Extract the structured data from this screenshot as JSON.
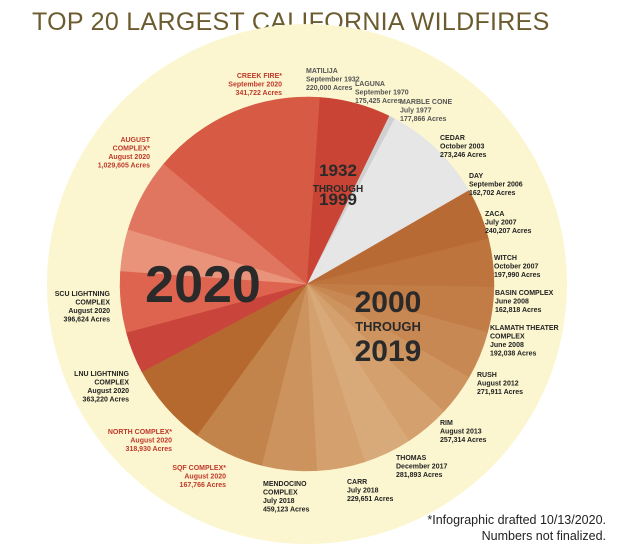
{
  "chart_data": {
    "type": "pie",
    "title": "TOP 20 LARGEST CALIFORNIA WILDFIRES",
    "unit": "Acres",
    "groups": [
      {
        "key": "era1",
        "label_lines": [
          "1932",
          "THROUGH",
          "1999"
        ]
      },
      {
        "key": "era2",
        "label_lines": [
          "2000",
          "THROUGH",
          "2019"
        ]
      },
      {
        "key": "era3",
        "label_lines": [
          "2020"
        ]
      }
    ],
    "slices": [
      {
        "name": [
          "MATILIJA"
        ],
        "date": "September 1932",
        "acres": "220,000 Acres",
        "group": "era1",
        "color": "#bcbcbc",
        "label_color": "#555555"
      },
      {
        "name": [
          "LAGUNA"
        ],
        "date": "September 1970",
        "acres": "175,425 Acres",
        "group": "era1",
        "color": "#d0d0d0",
        "label_color": "#555555"
      },
      {
        "name": [
          "MARBLE CONE"
        ],
        "date": "July 1977",
        "acres": "177,866 Acres",
        "group": "era1",
        "color": "#e6e6e6",
        "label_color": "#555555"
      },
      {
        "name": [
          "CEDAR"
        ],
        "date": "October 2003",
        "acres": "273,246 Acres",
        "group": "era2",
        "color": "#b86a34",
        "label_color": "#222222"
      },
      {
        "name": [
          "DAY"
        ],
        "date": "September 2006",
        "acres": "162,702 Acres",
        "group": "era2",
        "color": "#bd743d",
        "label_color": "#222222"
      },
      {
        "name": [
          "ZACA"
        ],
        "date": "July 2007",
        "acres": "240,207 Acres",
        "group": "era2",
        "color": "#c27d47",
        "label_color": "#222222"
      },
      {
        "name": [
          "WITCH"
        ],
        "date": "October 2007",
        "acres": "197,990 Acres",
        "group": "era2",
        "color": "#c88853",
        "label_color": "#222222"
      },
      {
        "name": [
          "BASIN COMPLEX"
        ],
        "date": "June 2008",
        "acres": "162,818 Acres",
        "group": "era2",
        "color": "#cd9460",
        "label_color": "#222222"
      },
      {
        "name": [
          "KLAMATH THEATER",
          "COMPLEX"
        ],
        "date": "June 2008",
        "acres": "192,038 Acres",
        "group": "era2",
        "color": "#d4a06e",
        "label_color": "#222222"
      },
      {
        "name": [
          "RUSH"
        ],
        "date": "August 2012",
        "acres": "271,911 Acres",
        "group": "era2",
        "color": "#d9aa79",
        "label_color": "#222222"
      },
      {
        "name": [
          "RIM"
        ],
        "date": "August 2013",
        "acres": "257,314 Acres",
        "group": "era2",
        "color": "#d4a06d",
        "label_color": "#222222"
      },
      {
        "name": [
          "THOMAS"
        ],
        "date": "December 2017",
        "acres": "281,893 Acres",
        "group": "era2",
        "color": "#cc935f",
        "label_color": "#222222"
      },
      {
        "name": [
          "CARR"
        ],
        "date": "July 2018",
        "acres": "229,651 Acres",
        "group": "era2",
        "color": "#c3844c",
        "label_color": "#222222"
      },
      {
        "name": [
          "MENDOCINO",
          "COMPLEX"
        ],
        "date": "July 2018",
        "acres": "459,123 Acres",
        "group": "era2",
        "color": "#b6692e",
        "label_color": "#222222"
      },
      {
        "name": [
          "SQF COMPLEX*"
        ],
        "date": "August 2020",
        "acres": "167,766 Acres",
        "group": "era3",
        "color": "#c9443a",
        "label_color": "#c0392b"
      },
      {
        "name": [
          "NORTH COMPLEX*"
        ],
        "date": "August 2020",
        "acres": "318,930 Acres",
        "group": "era3",
        "color": "#de6450",
        "label_color": "#c0392b"
      },
      {
        "name": [
          "LNU LIGHTNING",
          "COMPLEX"
        ],
        "date": "August 2020",
        "acres": "363,220 Acres",
        "group": "era3",
        "color": "#e8937a",
        "label_color": "#222222"
      },
      {
        "name": [
          "SCU LIGHTNING",
          "COMPLEX"
        ],
        "date": "August 2020",
        "acres": "396,624 Acres",
        "group": "era3",
        "color": "#e0765f",
        "label_color": "#222222"
      },
      {
        "name": [
          "AUGUST",
          "COMPLEX*"
        ],
        "date": "August 2020",
        "acres": "1,029,605 Acres",
        "group": "era3",
        "color": "#d75a44",
        "label_color": "#c0392b"
      },
      {
        "name": [
          "CREEK FIRE*"
        ],
        "date": "September 2020",
        "acres": "341,722 Acres",
        "group": "era3",
        "color": "#c94434",
        "label_color": "#c0392b"
      }
    ],
    "legend": "none",
    "background_color": "#fbf6cf"
  },
  "footnote_lines": [
    "*Infographic drafted 10/13/2020.",
    "Numbers not finalized."
  ]
}
